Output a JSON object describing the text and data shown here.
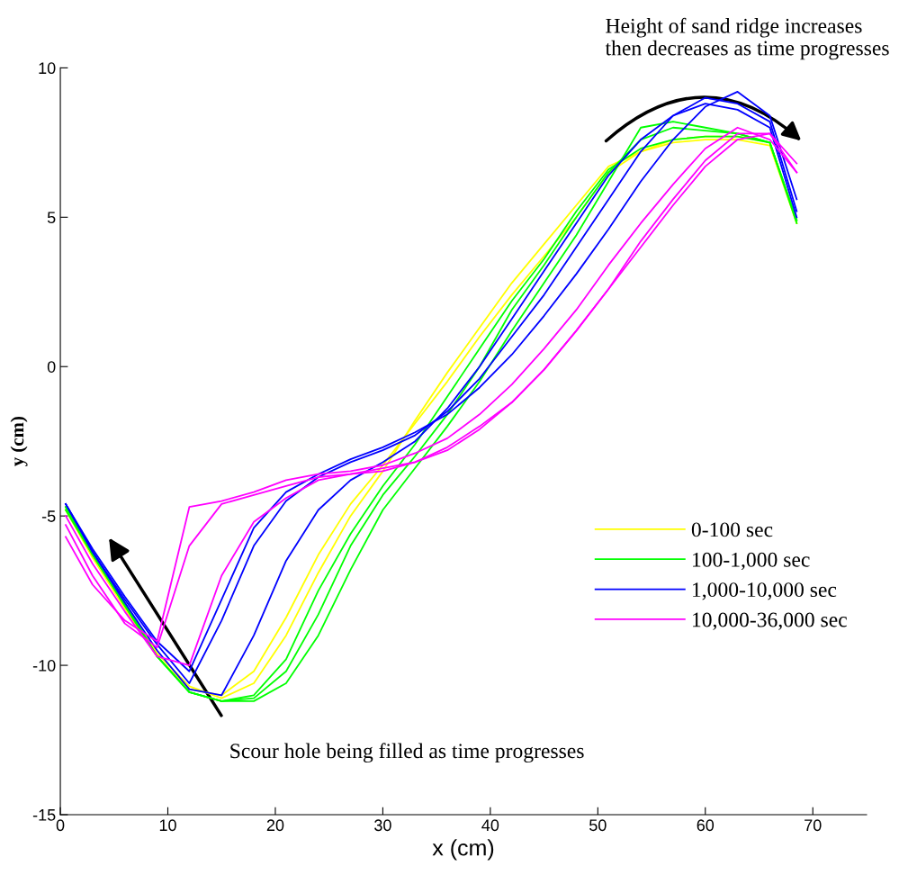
{
  "chart_data": {
    "type": "line",
    "xlabel": "x (cm)",
    "ylabel": "y (cm)",
    "annotations": [
      "Height of sand ridge increases\nthen decreases as time progresses",
      "Scour hole being filled as time progresses"
    ],
    "x": [
      0.5,
      3,
      6,
      9,
      12,
      15,
      18,
      21,
      24,
      27,
      30,
      33,
      36,
      39,
      42,
      45,
      48,
      51,
      54,
      57,
      60,
      63,
      66,
      68.5
    ],
    "xlim": [
      0,
      75
    ],
    "xticks": [
      0,
      10,
      20,
      30,
      40,
      50,
      60,
      70
    ],
    "ylim": [
      -15,
      10
    ],
    "yticks": [
      -15,
      -10,
      -5,
      0,
      5,
      10
    ],
    "grid": false,
    "legend": "lower right",
    "line_style": "solid",
    "marker": "none",
    "series": [
      {
        "name": "0-100 sec",
        "color": "#ffff00",
        "values": [
          -4.8,
          -6.3,
          -8.0,
          -9.6,
          -10.7,
          -11.1,
          -10.6,
          -9.0,
          -6.9,
          -5.0,
          -3.5,
          -1.8,
          -0.2,
          1.3,
          2.8,
          4.1,
          5.4,
          6.7,
          7.2,
          7.5,
          7.6,
          7.6,
          7.4,
          4.8
        ]
      },
      {
        "color": "#ffff00",
        "values": [
          -4.8,
          -6.4,
          -8.1,
          -9.7,
          -10.8,
          -11.0,
          -10.2,
          -8.4,
          -6.3,
          -4.6,
          -3.3,
          -1.9,
          -0.5,
          1.0,
          2.4,
          3.7,
          5.0,
          6.5,
          7.2,
          7.6,
          7.7,
          7.7,
          7.5,
          4.8
        ]
      },
      {
        "name": "100-1,000 sec",
        "color": "#00ff00",
        "values": [
          -4.8,
          -6.3,
          -8.0,
          -9.7,
          -10.9,
          -11.2,
          -11.0,
          -9.8,
          -7.5,
          -5.6,
          -4.0,
          -2.6,
          -1.0,
          0.6,
          2.2,
          3.6,
          5.2,
          6.6,
          7.3,
          7.6,
          7.7,
          7.7,
          7.5,
          4.8
        ]
      },
      {
        "color": "#00ff00",
        "values": [
          -4.7,
          -6.3,
          -8.0,
          -9.7,
          -10.9,
          -11.2,
          -11.1,
          -10.2,
          -8.3,
          -6.0,
          -4.3,
          -3.0,
          -1.6,
          0.0,
          1.9,
          3.4,
          5.0,
          6.5,
          7.6,
          8.0,
          7.9,
          7.8,
          7.5,
          4.9
        ]
      },
      {
        "color": "#00ff00",
        "values": [
          -4.7,
          -6.2,
          -7.9,
          -9.7,
          -10.9,
          -11.2,
          -11.2,
          -10.6,
          -9.0,
          -6.8,
          -4.8,
          -3.4,
          -2.0,
          -0.5,
          1.2,
          2.8,
          4.4,
          6.2,
          8.0,
          8.2,
          8.0,
          7.8,
          7.5,
          4.9
        ]
      },
      {
        "name": "1,000-10,000 sec",
        "color": "#0000ff",
        "values": [
          -4.6,
          -6.2,
          -7.9,
          -9.5,
          -10.8,
          -11.0,
          -9.0,
          -6.5,
          -4.8,
          -3.8,
          -3.2,
          -2.5,
          -1.4,
          0.0,
          1.6,
          3.2,
          4.8,
          6.4,
          7.6,
          8.4,
          8.8,
          8.6,
          8.0,
          5.0
        ]
      },
      {
        "color": "#0000ff",
        "values": [
          -4.6,
          -6.2,
          -7.8,
          -9.3,
          -10.6,
          -8.5,
          -6.0,
          -4.5,
          -3.7,
          -3.2,
          -2.8,
          -2.3,
          -1.5,
          -0.4,
          1.0,
          2.4,
          4.0,
          5.6,
          7.2,
          8.4,
          9.0,
          8.8,
          8.2,
          5.2
        ]
      },
      {
        "color": "#0000ff",
        "values": [
          -4.6,
          -6.1,
          -7.7,
          -9.2,
          -10.2,
          -7.8,
          -5.4,
          -4.2,
          -3.6,
          -3.1,
          -2.7,
          -2.2,
          -1.6,
          -0.7,
          0.4,
          1.7,
          3.1,
          4.6,
          6.2,
          7.6,
          8.7,
          9.2,
          8.4,
          5.6
        ]
      },
      {
        "name": "10,000-36,000 sec",
        "color": "#ff00ff",
        "values": [
          -5.0,
          -6.6,
          -8.2,
          -9.7,
          -10.0,
          -7.0,
          -5.2,
          -4.4,
          -3.8,
          -3.6,
          -3.5,
          -3.2,
          -2.7,
          -2.0,
          -1.2,
          -0.1,
          1.2,
          2.6,
          4.0,
          5.4,
          6.7,
          7.6,
          7.8,
          6.5
        ]
      },
      {
        "color": "#ff00ff",
        "values": [
          -5.3,
          -7.0,
          -8.6,
          -9.4,
          -6.0,
          -4.6,
          -4.3,
          -4.0,
          -3.7,
          -3.6,
          -3.4,
          -3.2,
          -2.8,
          -2.1,
          -1.2,
          -0.1,
          1.2,
          2.6,
          4.2,
          5.6,
          6.9,
          7.8,
          7.8,
          6.8
        ]
      },
      {
        "color": "#ff00ff",
        "values": [
          -5.7,
          -7.3,
          -8.5,
          -9.2,
          -4.7,
          -4.5,
          -4.2,
          -3.8,
          -3.6,
          -3.5,
          -3.3,
          -2.9,
          -2.4,
          -1.6,
          -0.6,
          0.6,
          1.9,
          3.4,
          4.8,
          6.1,
          7.3,
          8.0,
          7.6,
          6.5
        ]
      }
    ]
  }
}
